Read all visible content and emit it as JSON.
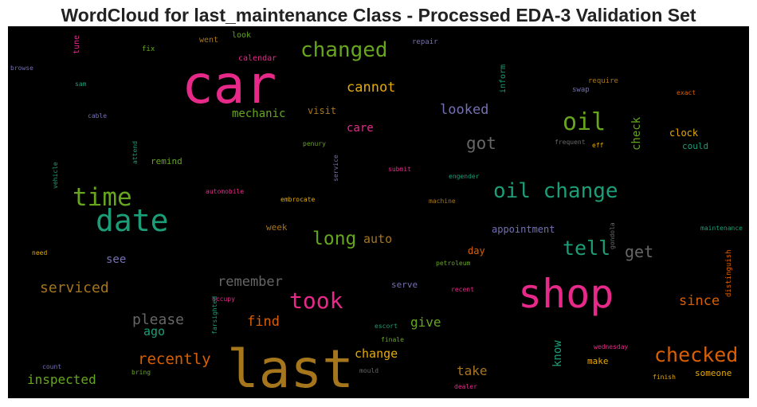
{
  "chart_data": {
    "type": "wordcloud",
    "title": "WordCloud for last_maintenance Class - Processed EDA-3 Validation Set",
    "background": "#000000",
    "palette": [
      "#e7298a",
      "#66a61e",
      "#1b9e77",
      "#e6ab02",
      "#d95f02",
      "#7570b3",
      "#a6761d",
      "#666666"
    ],
    "words": [
      {
        "text": "car",
        "color": "#e7298a"
      },
      {
        "text": "last",
        "color": "#a6761d"
      },
      {
        "text": "shop",
        "color": "#e7298a"
      },
      {
        "text": "date",
        "color": "#1b9e77"
      },
      {
        "text": "time",
        "color": "#66a61e"
      },
      {
        "text": "oil change",
        "color": "#1b9e77"
      },
      {
        "text": "changed",
        "color": "#66a61e"
      },
      {
        "text": "oil",
        "color": "#66a61e"
      },
      {
        "text": "took",
        "color": "#e7298a"
      },
      {
        "text": "checked",
        "color": "#d95f02"
      },
      {
        "text": "tell",
        "color": "#1b9e77"
      },
      {
        "text": "long",
        "color": "#66a61e"
      },
      {
        "text": "got",
        "color": "#666666"
      },
      {
        "text": "cannot",
        "color": "#e6ab02"
      },
      {
        "text": "recently",
        "color": "#d95f02"
      },
      {
        "text": "serviced",
        "color": "#a6761d"
      },
      {
        "text": "remember",
        "color": "#666666"
      },
      {
        "text": "get",
        "color": "#666666"
      },
      {
        "text": "looked",
        "color": "#7570b3"
      },
      {
        "text": "please",
        "color": "#666666"
      },
      {
        "text": "find",
        "color": "#d95f02"
      },
      {
        "text": "since",
        "color": "#d95f02"
      },
      {
        "text": "inspected",
        "color": "#66a61e"
      },
      {
        "text": "take",
        "color": "#a6761d"
      },
      {
        "text": "change",
        "color": "#e6ab02"
      },
      {
        "text": "give",
        "color": "#66a61e"
      },
      {
        "text": "auto",
        "color": "#a6761d"
      },
      {
        "text": "mechanic",
        "color": "#66a61e"
      },
      {
        "text": "ago",
        "color": "#1b9e77"
      },
      {
        "text": "care",
        "color": "#e7298a"
      },
      {
        "text": "see",
        "color": "#7570b3"
      },
      {
        "text": "check",
        "color": "#66a61e"
      },
      {
        "text": "know",
        "color": "#1b9e77"
      },
      {
        "text": "appointment",
        "color": "#7570b3"
      },
      {
        "text": "clock",
        "color": "#e6ab02"
      },
      {
        "text": "could",
        "color": "#1b9e77"
      },
      {
        "text": "day",
        "color": "#d95f02"
      },
      {
        "text": "visit",
        "color": "#a6761d"
      },
      {
        "text": "remind",
        "color": "#66a61e"
      },
      {
        "text": "serve",
        "color": "#7570b3"
      },
      {
        "text": "week",
        "color": "#a6761d"
      },
      {
        "text": "make",
        "color": "#e6ab02"
      },
      {
        "text": "someone",
        "color": "#e6ab02"
      },
      {
        "text": "calendar",
        "color": "#e7298a"
      },
      {
        "text": "went",
        "color": "#a6761d"
      },
      {
        "text": "look",
        "color": "#66a61e"
      },
      {
        "text": "inform",
        "color": "#1b9e77"
      },
      {
        "text": "tune",
        "color": "#e7298a"
      },
      {
        "text": "fix",
        "color": "#66a61e"
      },
      {
        "text": "repair",
        "color": "#7570b3"
      },
      {
        "text": "browse",
        "color": "#7570b3"
      },
      {
        "text": "sam",
        "color": "#1b9e77"
      },
      {
        "text": "cable",
        "color": "#7570b3"
      },
      {
        "text": "require",
        "color": "#a6761d"
      },
      {
        "text": "swap",
        "color": "#7570b3"
      },
      {
        "text": "exact",
        "color": "#d95f02"
      },
      {
        "text": "frequent",
        "color": "#666666"
      },
      {
        "text": "eff",
        "color": "#e6ab02"
      },
      {
        "text": "penury",
        "color": "#66a61e"
      },
      {
        "text": "service",
        "color": "#7570b3"
      },
      {
        "text": "attend",
        "color": "#1b9e77"
      },
      {
        "text": "vehicle",
        "color": "#1b9e77"
      },
      {
        "text": "submit",
        "color": "#e7298a"
      },
      {
        "text": "engender",
        "color": "#1b9e77"
      },
      {
        "text": "automobile",
        "color": "#e7298a"
      },
      {
        "text": "embrocate",
        "color": "#e6ab02"
      },
      {
        "text": "machine",
        "color": "#a6761d"
      },
      {
        "text": "gondola",
        "color": "#666666"
      },
      {
        "text": "maintenance",
        "color": "#1b9e77"
      },
      {
        "text": "need",
        "color": "#e6ab02"
      },
      {
        "text": "petroleum",
        "color": "#66a61e"
      },
      {
        "text": "distinguish",
        "color": "#d95f02"
      },
      {
        "text": "recent",
        "color": "#e7298a"
      },
      {
        "text": "occupy",
        "color": "#e7298a"
      },
      {
        "text": "farsighted",
        "color": "#1b9e77"
      },
      {
        "text": "escort",
        "color": "#1b9e77"
      },
      {
        "text": "finale",
        "color": "#66a61e"
      },
      {
        "text": "wednesday",
        "color": "#e7298a"
      },
      {
        "text": "count",
        "color": "#7570b3"
      },
      {
        "text": "bring",
        "color": "#66a61e"
      },
      {
        "text": "mould",
        "color": "#666666"
      },
      {
        "text": "dealer",
        "color": "#e7298a"
      },
      {
        "text": "finish",
        "color": "#e6ab02"
      }
    ]
  }
}
